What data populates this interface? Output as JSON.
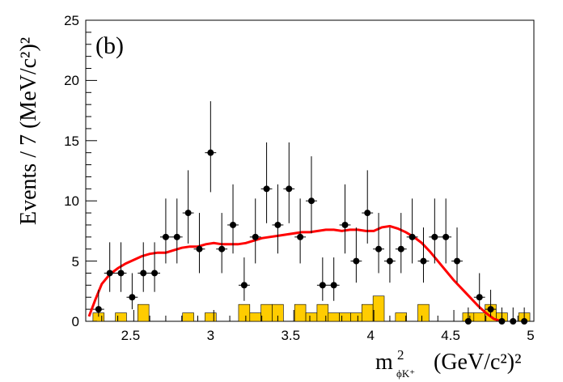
{
  "chart_data": {
    "type": "scatter",
    "panel_label": "(b)",
    "xlabel_parts": {
      "m": "m",
      "sup": "2",
      "sub": "ϕK⁺",
      "unit": "(GeV/c²)²"
    },
    "ylabel": "Events / 7 (MeV/c²)²",
    "xlim": [
      2.2,
      5.0
    ],
    "ylim": [
      0,
      25
    ],
    "x_ticks": [
      "2.5",
      "3",
      "3.5",
      "4",
      "4.5",
      "5"
    ],
    "y_ticks": [
      "0",
      "5",
      "10",
      "15",
      "20",
      "25"
    ],
    "colors": {
      "data": "#000000",
      "fit": "#ff0000",
      "background_hist": "#ffcc00"
    },
    "series": [
      {
        "type": "errorbar",
        "x": [
          2.28,
          2.35,
          2.42,
          2.49,
          2.56,
          2.63,
          2.7,
          2.77,
          2.84,
          2.91,
          2.98,
          3.05,
          3.12,
          3.19,
          3.26,
          3.33,
          3.4,
          3.47,
          3.54,
          3.61,
          3.68,
          3.75,
          3.82,
          3.89,
          3.96,
          4.03,
          4.1,
          4.17,
          4.24,
          4.31,
          4.38,
          4.45,
          4.52,
          4.59,
          4.66,
          4.73,
          4.8,
          4.87,
          4.94
        ],
        "y": [
          1,
          4,
          4,
          2,
          4,
          4,
          7,
          7,
          9,
          6,
          14,
          6,
          8,
          3,
          7,
          11,
          8,
          11,
          7,
          10,
          3,
          3,
          8,
          5,
          9,
          6,
          5,
          6,
          7,
          5,
          7,
          7,
          5,
          0,
          2,
          1,
          0,
          0,
          0
        ]
      },
      {
        "type": "line",
        "x": [
          2.22,
          2.26,
          2.3,
          2.35,
          2.4,
          2.45,
          2.5,
          2.55,
          2.6,
          2.65,
          2.7,
          2.75,
          2.8,
          2.85,
          2.9,
          2.95,
          3.0,
          3.05,
          3.1,
          3.15,
          3.2,
          3.25,
          3.3,
          3.35,
          3.4,
          3.45,
          3.5,
          3.55,
          3.6,
          3.65,
          3.7,
          3.75,
          3.8,
          3.85,
          3.9,
          3.95,
          4.0,
          4.05,
          4.1,
          4.15,
          4.2,
          4.25,
          4.3,
          4.35,
          4.4,
          4.45,
          4.5,
          4.55,
          4.6,
          4.65,
          4.7,
          4.75,
          4.8
        ],
        "y": [
          0.4,
          1.8,
          3.1,
          3.9,
          4.4,
          4.8,
          5.1,
          5.4,
          5.6,
          5.7,
          5.7,
          5.9,
          6.1,
          6.2,
          6.2,
          6.4,
          6.5,
          6.4,
          6.4,
          6.4,
          6.5,
          6.7,
          6.9,
          7.0,
          7.1,
          7.2,
          7.3,
          7.4,
          7.4,
          7.5,
          7.6,
          7.6,
          7.5,
          7.6,
          7.6,
          7.5,
          7.5,
          7.8,
          7.9,
          7.7,
          7.4,
          7.0,
          6.5,
          5.8,
          5.0,
          4.2,
          3.4,
          2.7,
          2.0,
          1.3,
          0.7,
          0.2,
          0.0
        ]
      },
      {
        "type": "histogram",
        "bin_width": 0.07,
        "x": [
          2.28,
          2.42,
          2.56,
          2.84,
          2.98,
          3.19,
          3.26,
          3.33,
          3.4,
          3.54,
          3.61,
          3.68,
          3.75,
          3.82,
          3.89,
          3.96,
          4.03,
          4.17,
          4.31,
          4.59,
          4.66,
          4.73,
          4.8,
          4.94
        ],
        "y": [
          0.7,
          0.7,
          1.4,
          0.7,
          0.7,
          1.4,
          0.7,
          1.4,
          1.4,
          1.4,
          0.7,
          1.4,
          0.7,
          0.7,
          0.7,
          1.4,
          2.1,
          0.7,
          1.4,
          0.7,
          0.7,
          1.4,
          0.7,
          0.7
        ]
      }
    ]
  }
}
